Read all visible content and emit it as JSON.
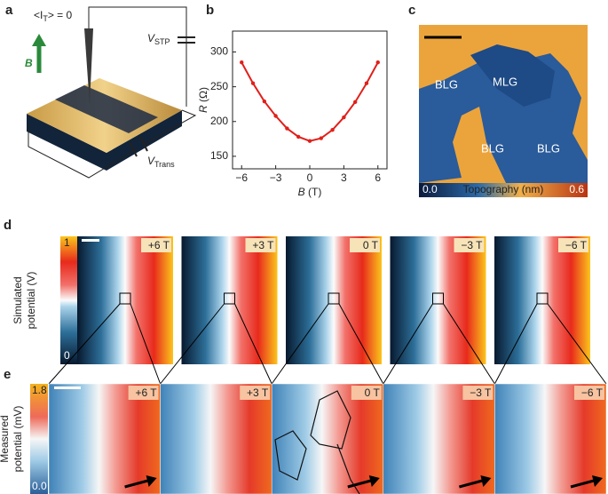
{
  "panels": {
    "a": {
      "label": "a",
      "current": {
        "pre": "<I",
        "sub": "T",
        "post": "> = 0"
      },
      "field": "B",
      "vstp": {
        "main": "V",
        "sub": "STP"
      },
      "vtrans": {
        "main": "V",
        "sub": "Trans"
      }
    },
    "b": {
      "label": "b"
    },
    "c": {
      "label": "c",
      "regions": [
        "BLG",
        "MLG",
        "BLG",
        "BLG"
      ],
      "colorbar": {
        "min": "0.0",
        "title": "Topography (nm)",
        "max": "0.6"
      }
    },
    "d": {
      "label": "d",
      "ylabel": [
        "Simulated",
        "potential (V)"
      ],
      "colorbar": {
        "max": "1",
        "min": "0"
      },
      "fields": [
        "+6 T",
        "+3 T",
        "0 T",
        "−3 T",
        "−6 T"
      ]
    },
    "e": {
      "label": "e",
      "ylabel": [
        "Measured",
        "potential (mV)"
      ],
      "colorbar": {
        "max": "1.8",
        "min": "0.0"
      },
      "fields": [
        "+6 T",
        "+3 T",
        "0 T",
        "−3 T",
        "−6 T"
      ]
    }
  },
  "chart_data": {
    "type": "scatter",
    "xlabel": {
      "var": "B",
      "unit": " (T)"
    },
    "ylabel": {
      "var": "R",
      "unit": " (Ω)"
    },
    "x": [
      -6,
      -5,
      -4,
      -3,
      -2,
      -1,
      0,
      1,
      2,
      3,
      4,
      5,
      6
    ],
    "values": [
      285,
      255,
      229,
      208,
      190,
      178,
      172,
      176,
      188,
      206,
      228,
      255,
      285
    ],
    "color": "#e0201b",
    "xlim": [
      -6.8,
      6.8
    ],
    "ylim": [
      132,
      330
    ],
    "xticks": [
      {
        "value": -6,
        "label": "−6"
      },
      {
        "value": -3,
        "label": "−3"
      },
      0,
      3,
      6
    ],
    "yticks": [
      150,
      200,
      250,
      300
    ]
  }
}
